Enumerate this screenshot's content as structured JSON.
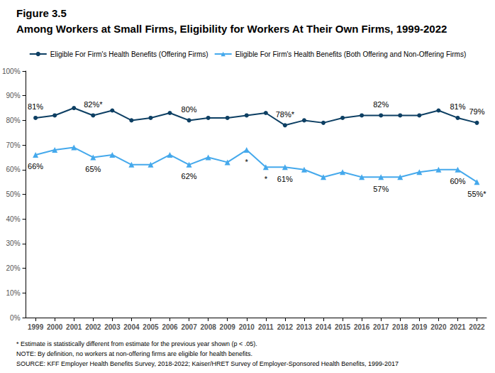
{
  "chart_data": {
    "type": "line",
    "title": "Figure 3.5",
    "subtitle": "Among Workers at Small Firms, Eligibility for Workers At Their Own Firms, 1999-2022",
    "notes": [
      "* Estimate is statistically different from estimate for the previous year shown (p < .05).",
      "NOTE: By definition, no workers at non-offering firms are eligible for health benefits.",
      "SOURCE: KFF Employer Health Benefits Survey, 2018-2022; Kaiser/HRET Survey of Employer-Sponsored Health Benefits, 1999-2017"
    ],
    "categories": [
      "1999",
      "2000",
      "2001",
      "2002",
      "2003",
      "2004",
      "2005",
      "2006",
      "2007",
      "2008",
      "2009",
      "2010",
      "2011",
      "2012",
      "2013",
      "2014",
      "2015",
      "2016",
      "2017",
      "2018",
      "2019",
      "2020",
      "2021",
      "2022"
    ],
    "series": [
      {
        "name": "Eligible For Firm's Health Benefits (Offering Firms)",
        "color": "#0d3f63",
        "marker": "circle",
        "values": [
          81,
          82,
          85,
          82,
          84,
          80,
          81,
          83,
          80,
          81,
          81,
          82,
          83,
          78,
          80,
          79,
          81,
          82,
          82,
          82,
          82,
          84,
          81,
          79
        ],
        "value_labels": [
          "81%",
          null,
          null,
          "82%*",
          null,
          null,
          null,
          null,
          "80%",
          null,
          null,
          null,
          null,
          "78%*",
          null,
          null,
          null,
          null,
          "82%",
          null,
          null,
          null,
          "81%",
          "79%"
        ]
      },
      {
        "name": "Eligible For Firm's Health Benefits (Both Offering and Non-Offering Firms)",
        "color": "#45a9ec",
        "marker": "triangle",
        "values": [
          66,
          68,
          69,
          65,
          66,
          62,
          62,
          66,
          62,
          65,
          63,
          68,
          61,
          61,
          60,
          57,
          59,
          57,
          57,
          57,
          59,
          60,
          60,
          55
        ],
        "value_labels": [
          "66%",
          null,
          null,
          "65%",
          null,
          null,
          null,
          null,
          "62%",
          null,
          null,
          "*",
          "*",
          "61%",
          null,
          null,
          null,
          null,
          "57%",
          null,
          null,
          null,
          "60%",
          "55%*"
        ]
      }
    ],
    "ylim": [
      0,
      100
    ],
    "yticks": [
      {
        "value": 0,
        "label": "0%"
      },
      {
        "value": 10,
        "label": "10%"
      },
      {
        "value": 20,
        "label": "20%"
      },
      {
        "value": 30,
        "label": "30%"
      },
      {
        "value": 40,
        "label": "40%"
      },
      {
        "value": 50,
        "label": "50%"
      },
      {
        "value": 60,
        "label": "60%"
      },
      {
        "value": 70,
        "label": "70%"
      },
      {
        "value": 80,
        "label": "80%"
      },
      {
        "value": 90,
        "label": "90%"
      },
      {
        "value": 100,
        "label": "100%"
      }
    ],
    "grid": false,
    "legend": "top",
    "data_labels": true
  }
}
